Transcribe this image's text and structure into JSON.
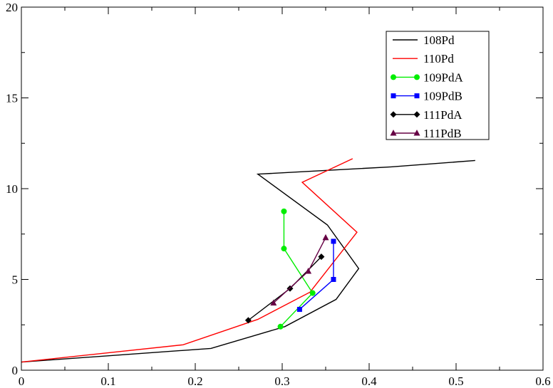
{
  "chart_data": {
    "type": "line",
    "title": "",
    "xlabel": "",
    "ylabel": "",
    "xlim": [
      0,
      0.6
    ],
    "ylim": [
      0,
      20
    ],
    "xticks": [
      0,
      0.1,
      0.2,
      0.3,
      0.4,
      0.5,
      0.6
    ],
    "xtick_labels": [
      "0",
      "0.1",
      "0.2",
      "0.3",
      "0.4",
      "0.5",
      "0.6"
    ],
    "yticks": [
      0,
      5,
      10,
      15,
      20
    ],
    "ytick_labels": [
      "0",
      "5",
      "10",
      "15",
      "20"
    ],
    "grid": false,
    "legend_position": "top-right",
    "series": [
      {
        "name": "108Pd",
        "color": "#000000",
        "marker": "none",
        "x": [
          0.0,
          0.218,
          0.303,
          0.362,
          0.388,
          0.352,
          0.272,
          0.425,
          0.522
        ],
        "y": [
          0.45,
          1.2,
          2.4,
          3.9,
          5.6,
          8.0,
          10.8,
          11.2,
          11.55
        ]
      },
      {
        "name": "110Pd",
        "color": "#ff0000",
        "marker": "none",
        "x": [
          0.0,
          0.186,
          0.272,
          0.332,
          0.386,
          0.323,
          0.381
        ],
        "y": [
          0.45,
          1.4,
          2.8,
          4.3,
          7.6,
          10.35,
          11.65
        ]
      },
      {
        "name": "109PdA",
        "color": "#00ee00",
        "marker": "circle",
        "x": [
          0.298,
          0.335,
          0.302,
          0.302
        ],
        "y": [
          2.4,
          4.25,
          6.7,
          8.75
        ]
      },
      {
        "name": "109PdB",
        "color": "#0000ff",
        "marker": "square",
        "x": [
          0.32,
          0.359,
          0.359
        ],
        "y": [
          3.35,
          5.0,
          7.1
        ]
      },
      {
        "name": "111PdA",
        "color": "#000000",
        "marker": "diamond",
        "x": [
          0.261,
          0.309,
          0.345
        ],
        "y": [
          2.75,
          4.5,
          6.25
        ]
      },
      {
        "name": "111PdB",
        "color": "#660044",
        "marker": "triangle",
        "x": [
          0.29,
          0.33,
          0.35
        ],
        "y": [
          3.7,
          5.45,
          7.3
        ]
      }
    ]
  }
}
